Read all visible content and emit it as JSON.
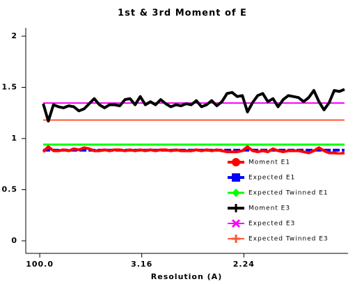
{
  "chart_data": {
    "type": "line",
    "title": "1st & 3rd Moment of E",
    "xlabel": "Resolution (A)",
    "xlim": [
      -0.0136,
      0.302
    ],
    "xticks": [
      {
        "value": 0.0001,
        "label": "100.0"
      },
      {
        "value": 0.1,
        "label": "3.16"
      },
      {
        "value": 0.2,
        "label": "2.24"
      }
    ],
    "ylim": [
      0,
      2
    ],
    "yticks": [
      0,
      0.5,
      1,
      1.5,
      2
    ],
    "legend": "lower right",
    "x": [
      0.0035,
      0.0085,
      0.0135,
      0.0185,
      0.0235,
      0.0285,
      0.0335,
      0.0385,
      0.0435,
      0.0485,
      0.0535,
      0.0585,
      0.0635,
      0.0685,
      0.0735,
      0.0785,
      0.0835,
      0.0885,
      0.0935,
      0.0985,
      0.1035,
      0.1085,
      0.1135,
      0.1185,
      0.1235,
      0.1285,
      0.1335,
      0.1385,
      0.1435,
      0.1485,
      0.1535,
      0.1585,
      0.1635,
      0.1685,
      0.1735,
      0.1785,
      0.1835,
      0.1885,
      0.1935,
      0.1985,
      0.2035,
      0.2085,
      0.2135,
      0.2185,
      0.2235,
      0.2285,
      0.2335,
      0.2385,
      0.2435,
      0.2485,
      0.2535,
      0.2585,
      0.2635,
      0.2685,
      0.2735,
      0.2785,
      0.2835,
      0.2885,
      0.2935,
      0.2985
    ],
    "series": [
      {
        "name": "Moment E1",
        "color": "#ff0000",
        "marker": "circle",
        "width": 4,
        "values": [
          0.87,
          0.92,
          0.88,
          0.88,
          0.89,
          0.88,
          0.9,
          0.89,
          0.91,
          0.9,
          0.88,
          0.88,
          0.89,
          0.88,
          0.89,
          0.89,
          0.88,
          0.89,
          0.88,
          0.89,
          0.88,
          0.89,
          0.88,
          0.89,
          0.89,
          0.88,
          0.89,
          0.88,
          0.88,
          0.88,
          0.89,
          0.88,
          0.89,
          0.88,
          0.89,
          0.88,
          0.87,
          0.87,
          0.87,
          0.88,
          0.92,
          0.88,
          0.87,
          0.88,
          0.87,
          0.9,
          0.88,
          0.87,
          0.88,
          0.88,
          0.88,
          0.87,
          0.86,
          0.88,
          0.91,
          0.88,
          0.86,
          0.86,
          0.85,
          0.86
        ]
      },
      {
        "name": "Expected E1",
        "color": "#0000ff",
        "marker": "square",
        "width": 4,
        "dash": true,
        "x": [
          0.0035,
          0.2985
        ],
        "values": [
          0.886,
          0.886
        ]
      },
      {
        "name": "Expected Twinned E1",
        "color": "#00ff00",
        "marker": "diamond",
        "width": 3,
        "x": [
          0.0035,
          0.2985
        ],
        "values": [
          0.94,
          0.94
        ]
      },
      {
        "name": "Moment E3",
        "color": "#000000",
        "marker": "plus",
        "width": 4,
        "values": [
          1.34,
          1.17,
          1.33,
          1.31,
          1.3,
          1.32,
          1.31,
          1.27,
          1.29,
          1.34,
          1.39,
          1.33,
          1.3,
          1.33,
          1.33,
          1.32,
          1.38,
          1.39,
          1.33,
          1.41,
          1.33,
          1.36,
          1.33,
          1.38,
          1.34,
          1.31,
          1.33,
          1.32,
          1.34,
          1.33,
          1.37,
          1.31,
          1.33,
          1.37,
          1.32,
          1.36,
          1.44,
          1.45,
          1.41,
          1.42,
          1.26,
          1.35,
          1.42,
          1.44,
          1.36,
          1.39,
          1.31,
          1.38,
          1.42,
          1.41,
          1.4,
          1.36,
          1.4,
          1.47,
          1.36,
          1.28,
          1.35,
          1.47,
          1.46,
          1.48
        ]
      },
      {
        "name": "Expected E3",
        "color": "#ff00ff",
        "marker": "x",
        "width": 2,
        "x": [
          0.0035,
          0.2985
        ],
        "values": [
          1.347,
          1.347
        ]
      },
      {
        "name": "Expected Twinned E3",
        "color": "#ff5533",
        "marker": "plus",
        "width": 2,
        "x": [
          0.0035,
          0.2985
        ],
        "values": [
          1.18,
          1.18
        ]
      }
    ]
  }
}
